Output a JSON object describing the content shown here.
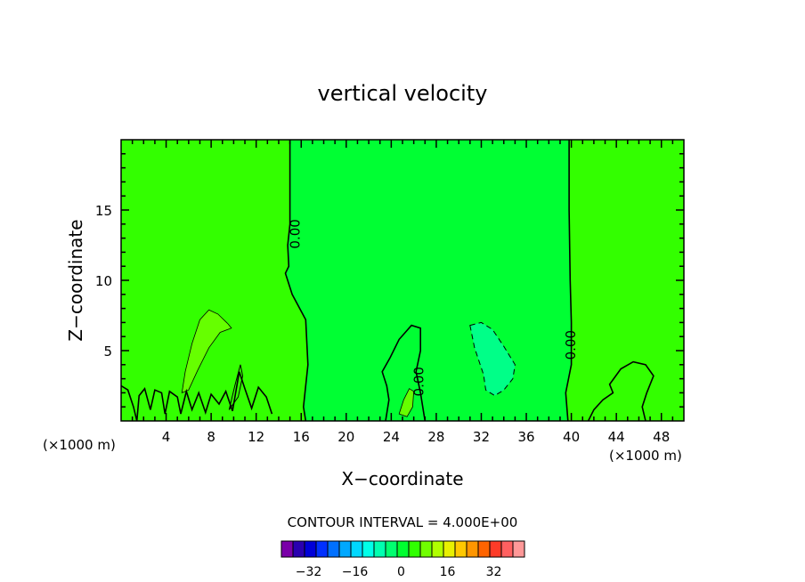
{
  "chart_data": {
    "type": "heatmap",
    "title": "vertical velocity",
    "xlabel": "X−coordinate",
    "ylabel": "Z−coordinate",
    "x_unit_left": "(×1000 m)",
    "x_unit_right": "(×1000 m)",
    "xlim": [
      0,
      50
    ],
    "ylim": [
      0,
      20
    ],
    "x_ticks": [
      4,
      8,
      12,
      16,
      20,
      24,
      28,
      32,
      36,
      40,
      44,
      48
    ],
    "x_tick_labels": [
      "4",
      "8",
      "12",
      "16",
      "20",
      "24",
      "28",
      "32",
      "36",
      "40",
      "44",
      "48"
    ],
    "y_ticks": [
      5,
      10,
      15
    ],
    "y_tick_labels": [
      "5",
      "10",
      "15"
    ],
    "contour_labels": [
      {
        "text": "0.00",
        "x": 15.5,
        "y": 13.3
      },
      {
        "text": "0.00",
        "x": 26.5,
        "y": 2.8
      },
      {
        "text": "0.00",
        "x": 40.0,
        "y": 5.4
      }
    ],
    "regions": [
      {
        "band": "0 to 4",
        "x": [
          0,
          15
        ],
        "y": [
          0,
          20
        ]
      },
      {
        "band": "-4 to 0",
        "x": [
          15,
          40
        ],
        "y": [
          0,
          20
        ]
      },
      {
        "band": "0 to 4",
        "x": [
          40,
          50
        ],
        "y": [
          0,
          20
        ]
      },
      {
        "band": "4 to 8",
        "x": [
          5,
          10
        ],
        "y": [
          2,
          8
        ]
      },
      {
        "band": "-8 to -4",
        "x": [
          31,
          35
        ],
        "y": [
          2,
          7
        ]
      }
    ],
    "contour_interval_text": "CONTOUR INTERVAL = 4.000E+00",
    "colorbar": {
      "colors": [
        "#7a00a8",
        "#2a00b0",
        "#0000d8",
        "#0030ff",
        "#0070ff",
        "#00a8ff",
        "#00d8ff",
        "#00ffe8",
        "#00ffb0",
        "#00ff70",
        "#00ff30",
        "#30ff00",
        "#70ff00",
        "#b0ff00",
        "#e8f000",
        "#ffc800",
        "#ff9600",
        "#ff6400",
        "#ff3c28",
        "#ff6060",
        "#ff9898"
      ],
      "tick_labels": [
        "−32",
        "−16",
        "0",
        "16",
        "32"
      ]
    },
    "colors": {
      "positive_fill": "#33ff00",
      "negative_fill": "#00ff33",
      "positive_strong": "#66ff00",
      "negative_strong": "#00ff88"
    }
  }
}
